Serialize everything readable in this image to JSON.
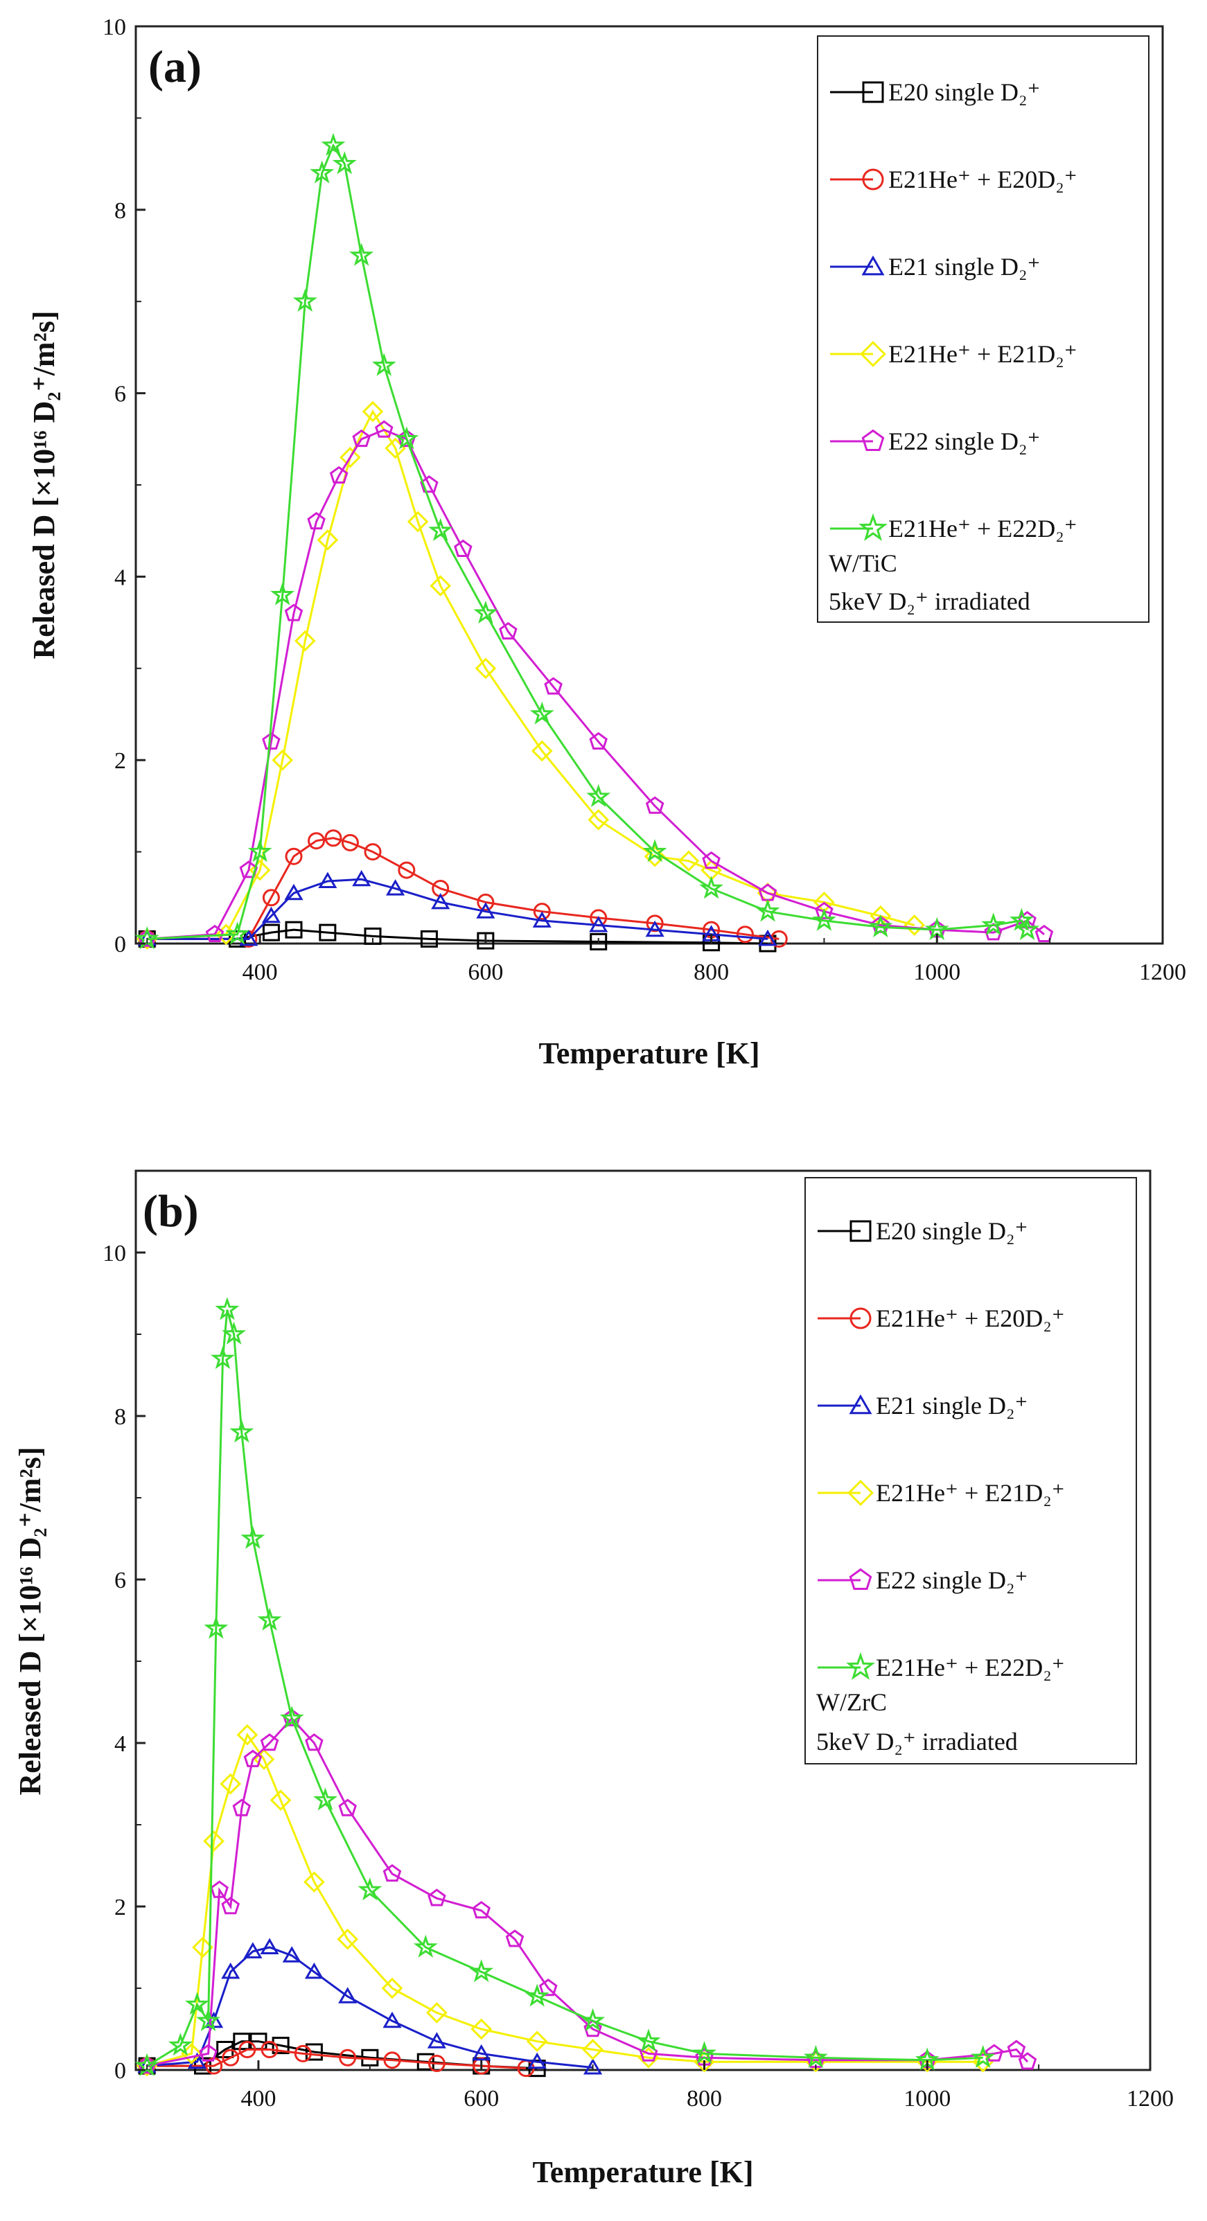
{
  "colors": {
    "E20_single": "#000000",
    "E21He_E20D": "#e8271f",
    "E21_single": "#1a1fc8",
    "E21He_E21D": "#f4f000",
    "E22_single": "#d21ed2",
    "E21He_E22D": "#3cdc32"
  },
  "chart_data": [
    {
      "type": "scatter",
      "panel_label": "(a)",
      "xlabel": "Temperature [K]",
      "ylabel": "Released D [×10¹⁶ D₂⁺/m²s]",
      "xlim": [
        290,
        1200
      ],
      "ylim": [
        0,
        10
      ],
      "xticks": [
        "400",
        "600",
        "800",
        "1000",
        "1200"
      ],
      "yticks": [
        "0",
        "2",
        "4",
        "6",
        "8",
        "10"
      ],
      "legend_position": "top-right",
      "notes": [
        "W/TiC",
        "5keV D₂⁺ irradiated"
      ],
      "series": [
        {
          "name": "E20 single D₂⁺",
          "marker": "square",
          "color_key": "E20_single",
          "points": [
            [
              300,
              0.05
            ],
            [
              380,
              0.05
            ],
            [
              410,
              0.12
            ],
            [
              430,
              0.15
            ],
            [
              460,
              0.12
            ],
            [
              500,
              0.08
            ],
            [
              550,
              0.05
            ],
            [
              600,
              0.03
            ],
            [
              700,
              0.02
            ],
            [
              800,
              0.01
            ],
            [
              850,
              0.0
            ]
          ]
        },
        {
          "name": "E21He⁺ + E20D₂⁺",
          "marker": "circle",
          "color_key": "E21He_E20D",
          "points": [
            [
              300,
              0.05
            ],
            [
              390,
              0.05
            ],
            [
              410,
              0.5
            ],
            [
              430,
              0.95
            ],
            [
              450,
              1.12
            ],
            [
              465,
              1.15
            ],
            [
              480,
              1.1
            ],
            [
              500,
              1.0
            ],
            [
              530,
              0.8
            ],
            [
              560,
              0.6
            ],
            [
              600,
              0.45
            ],
            [
              650,
              0.35
            ],
            [
              700,
              0.28
            ],
            [
              750,
              0.22
            ],
            [
              800,
              0.15
            ],
            [
              830,
              0.1
            ],
            [
              860,
              0.05
            ]
          ]
        },
        {
          "name": "E21 single D₂⁺",
          "marker": "triangle",
          "color_key": "E21_single",
          "points": [
            [
              300,
              0.05
            ],
            [
              390,
              0.05
            ],
            [
              410,
              0.3
            ],
            [
              430,
              0.55
            ],
            [
              460,
              0.68
            ],
            [
              490,
              0.7
            ],
            [
              520,
              0.6
            ],
            [
              560,
              0.45
            ],
            [
              600,
              0.35
            ],
            [
              650,
              0.25
            ],
            [
              700,
              0.2
            ],
            [
              750,
              0.15
            ],
            [
              800,
              0.1
            ],
            [
              850,
              0.05
            ]
          ]
        },
        {
          "name": "E21He⁺ + E21D₂⁺",
          "marker": "diamond",
          "color_key": "E21He_E21D",
          "points": [
            [
              300,
              0.05
            ],
            [
              370,
              0.1
            ],
            [
              400,
              0.8
            ],
            [
              420,
              2.0
            ],
            [
              440,
              3.3
            ],
            [
              460,
              4.4
            ],
            [
              480,
              5.3
            ],
            [
              500,
              5.8
            ],
            [
              520,
              5.4
            ],
            [
              540,
              4.6
            ],
            [
              560,
              3.9
            ],
            [
              600,
              3.0
            ],
            [
              650,
              2.1
            ],
            [
              700,
              1.35
            ],
            [
              750,
              0.95
            ],
            [
              780,
              0.9
            ],
            [
              800,
              0.8
            ],
            [
              850,
              0.55
            ],
            [
              900,
              0.45
            ],
            [
              950,
              0.3
            ],
            [
              980,
              0.2
            ]
          ]
        },
        {
          "name": "E22 single D₂⁺",
          "marker": "pentagon",
          "color_key": "E22_single",
          "points": [
            [
              300,
              0.05
            ],
            [
              360,
              0.1
            ],
            [
              390,
              0.8
            ],
            [
              410,
              2.2
            ],
            [
              430,
              3.6
            ],
            [
              450,
              4.6
            ],
            [
              470,
              5.1
            ],
            [
              490,
              5.5
            ],
            [
              510,
              5.6
            ],
            [
              530,
              5.5
            ],
            [
              550,
              5.0
            ],
            [
              580,
              4.3
            ],
            [
              620,
              3.4
            ],
            [
              660,
              2.8
            ],
            [
              700,
              2.2
            ],
            [
              750,
              1.5
            ],
            [
              800,
              0.9
            ],
            [
              850,
              0.55
            ],
            [
              900,
              0.35
            ],
            [
              950,
              0.2
            ],
            [
              1000,
              0.15
            ],
            [
              1050,
              0.12
            ],
            [
              1080,
              0.25
            ],
            [
              1095,
              0.1
            ]
          ]
        },
        {
          "name": "E21He⁺ + E22D₂⁺",
          "marker": "star",
          "color_key": "E21He_E22D",
          "points": [
            [
              300,
              0.05
            ],
            [
              380,
              0.1
            ],
            [
              400,
              1.0
            ],
            [
              420,
              3.8
            ],
            [
              440,
              7.0
            ],
            [
              455,
              8.4
            ],
            [
              465,
              8.7
            ],
            [
              475,
              8.5
            ],
            [
              490,
              7.5
            ],
            [
              510,
              6.3
            ],
            [
              530,
              5.5
            ],
            [
              560,
              4.5
            ],
            [
              600,
              3.6
            ],
            [
              650,
              2.5
            ],
            [
              700,
              1.6
            ],
            [
              750,
              1.0
            ],
            [
              800,
              0.6
            ],
            [
              850,
              0.35
            ],
            [
              900,
              0.25
            ],
            [
              950,
              0.18
            ],
            [
              1000,
              0.15
            ],
            [
              1050,
              0.2
            ],
            [
              1075,
              0.25
            ],
            [
              1080,
              0.15
            ]
          ]
        }
      ]
    },
    {
      "type": "scatter",
      "panel_label": "(b)",
      "xlabel": "Temperature [K]",
      "ylabel": "Released D [×10¹⁶ D₂⁺/m²s]",
      "xlim": [
        290,
        1200
      ],
      "ylim": [
        0,
        11
      ],
      "xticks": [
        "400",
        "600",
        "800",
        "1000",
        "1200"
      ],
      "yticks": [
        "0",
        "2",
        "4",
        "6",
        "8",
        "10"
      ],
      "legend_position": "top-right",
      "notes": [
        "W/ZrC",
        "5keV D₂⁺ irradiated"
      ],
      "series": [
        {
          "name": "E20 single D₂⁺",
          "marker": "square",
          "color_key": "E20_single",
          "points": [
            [
              300,
              0.05
            ],
            [
              350,
              0.05
            ],
            [
              370,
              0.25
            ],
            [
              385,
              0.35
            ],
            [
              400,
              0.35
            ],
            [
              420,
              0.3
            ],
            [
              450,
              0.22
            ],
            [
              500,
              0.15
            ],
            [
              550,
              0.1
            ],
            [
              600,
              0.05
            ],
            [
              650,
              0.02
            ]
          ]
        },
        {
          "name": "E21He⁺ + E20D₂⁺",
          "marker": "circle",
          "color_key": "E21He_E20D",
          "points": [
            [
              300,
              0.05
            ],
            [
              360,
              0.05
            ],
            [
              375,
              0.15
            ],
            [
              390,
              0.25
            ],
            [
              410,
              0.25
            ],
            [
              440,
              0.2
            ],
            [
              480,
              0.15
            ],
            [
              520,
              0.12
            ],
            [
              560,
              0.08
            ],
            [
              600,
              0.05
            ],
            [
              640,
              0.02
            ]
          ]
        },
        {
          "name": "E21 single D₂⁺",
          "marker": "triangle",
          "color_key": "E21_single",
          "points": [
            [
              300,
              0.05
            ],
            [
              345,
              0.1
            ],
            [
              360,
              0.6
            ],
            [
              375,
              1.2
            ],
            [
              395,
              1.45
            ],
            [
              410,
              1.5
            ],
            [
              430,
              1.4
            ],
            [
              450,
              1.2
            ],
            [
              480,
              0.9
            ],
            [
              520,
              0.6
            ],
            [
              560,
              0.35
            ],
            [
              600,
              0.2
            ],
            [
              650,
              0.1
            ],
            [
              700,
              0.03
            ]
          ]
        },
        {
          "name": "E21He⁺ + E21D₂⁺",
          "marker": "diamond",
          "color_key": "E21He_E21D",
          "points": [
            [
              300,
              0.05
            ],
            [
              340,
              0.2
            ],
            [
              350,
              1.5
            ],
            [
              360,
              2.8
            ],
            [
              375,
              3.5
            ],
            [
              390,
              4.1
            ],
            [
              405,
              3.8
            ],
            [
              420,
              3.3
            ],
            [
              450,
              2.3
            ],
            [
              480,
              1.6
            ],
            [
              520,
              1.0
            ],
            [
              560,
              0.7
            ],
            [
              600,
              0.5
            ],
            [
              650,
              0.35
            ],
            [
              700,
              0.25
            ],
            [
              750,
              0.15
            ],
            [
              800,
              0.1
            ],
            [
              900,
              0.1
            ],
            [
              1000,
              0.1
            ],
            [
              1050,
              0.1
            ]
          ]
        },
        {
          "name": "E22 single D₂⁺",
          "marker": "pentagon",
          "color_key": "E22_single",
          "points": [
            [
              300,
              0.05
            ],
            [
              355,
              0.2
            ],
            [
              365,
              2.2
            ],
            [
              375,
              2.0
            ],
            [
              385,
              3.2
            ],
            [
              395,
              3.8
            ],
            [
              410,
              4.0
            ],
            [
              430,
              4.3
            ],
            [
              450,
              4.0
            ],
            [
              480,
              3.2
            ],
            [
              520,
              2.4
            ],
            [
              560,
              2.1
            ],
            [
              600,
              1.95
            ],
            [
              630,
              1.6
            ],
            [
              660,
              1.0
            ],
            [
              700,
              0.5
            ],
            [
              750,
              0.2
            ],
            [
              800,
              0.15
            ],
            [
              900,
              0.12
            ],
            [
              1000,
              0.12
            ],
            [
              1060,
              0.2
            ],
            [
              1080,
              0.25
            ],
            [
              1090,
              0.1
            ]
          ]
        },
        {
          "name": "E21He⁺ + E22D₂⁺",
          "marker": "star",
          "color_key": "E21He_E22D",
          "points": [
            [
              300,
              0.05
            ],
            [
              330,
              0.3
            ],
            [
              345,
              0.8
            ],
            [
              355,
              0.6
            ],
            [
              362,
              5.4
            ],
            [
              368,
              8.7
            ],
            [
              372,
              9.3
            ],
            [
              378,
              9.0
            ],
            [
              385,
              7.8
            ],
            [
              395,
              6.5
            ],
            [
              410,
              5.5
            ],
            [
              430,
              4.3
            ],
            [
              460,
              3.3
            ],
            [
              500,
              2.2
            ],
            [
              550,
              1.5
            ],
            [
              600,
              1.2
            ],
            [
              650,
              0.9
            ],
            [
              700,
              0.6
            ],
            [
              750,
              0.35
            ],
            [
              800,
              0.2
            ],
            [
              900,
              0.15
            ],
            [
              1000,
              0.12
            ],
            [
              1050,
              0.15
            ]
          ]
        }
      ]
    }
  ]
}
